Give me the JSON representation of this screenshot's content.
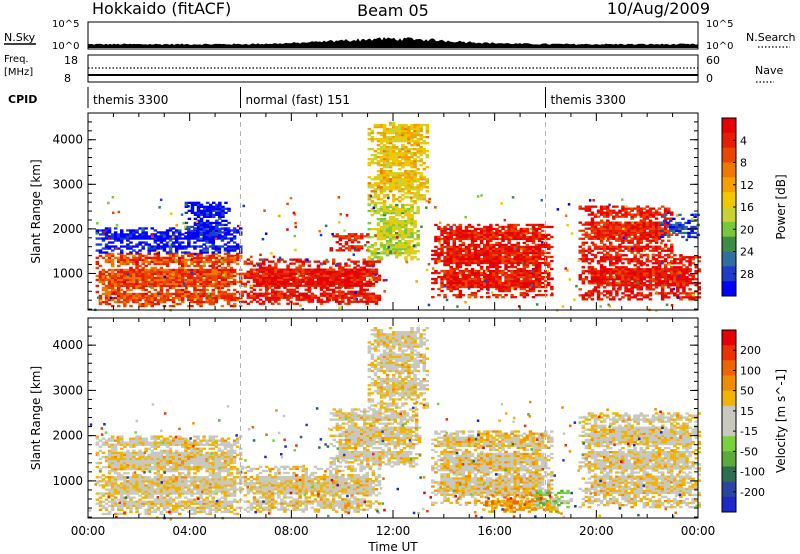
{
  "header": {
    "station": "Hokkaido (fitACF)",
    "beam": "Beam 05",
    "date": "10/Aug/2009"
  },
  "strip_labels": {
    "nsky": "N.Sky",
    "nsky_ticks": [
      "10^5",
      "10^0"
    ],
    "nsearch": "N.Search",
    "nsearch_ticks": [
      "10^5",
      "10^0"
    ],
    "freq": "Freq.",
    "freq_unit": "[MHz]",
    "freq_ticks": [
      "18",
      "8"
    ],
    "nave": "Nave",
    "nave_ticks": [
      "60",
      "0"
    ],
    "cpid": "CPID",
    "cpid_modes": [
      {
        "label": "themis 3300",
        "start_hour": 0,
        "end_hour": 6
      },
      {
        "label": "normal (fast) 151",
        "start_hour": 6,
        "end_hour": 18
      },
      {
        "label": "themis 3300",
        "start_hour": 18,
        "end_hour": 24
      }
    ]
  },
  "chart_data": [
    {
      "type": "heatmap",
      "name": "power",
      "ylabel": "Slant Range [km]",
      "xlabel": "Time UT",
      "xlim": [
        0,
        24
      ],
      "ylim": [
        180,
        4600
      ],
      "y_ticks": [
        1000,
        2000,
        3000,
        4000
      ],
      "x_ticks": [
        "00:00",
        "04:00",
        "08:00",
        "12:00",
        "16:00",
        "20:00",
        "00:00"
      ],
      "colorbar": {
        "label": "Power [dB]",
        "ticks": [
          "4",
          "8",
          "12",
          "16",
          "20",
          "24",
          "28"
        ],
        "colors": [
          "#0000ff",
          "#1e3cc8",
          "#2e6e9e",
          "#3c8c46",
          "#78c83c",
          "#c8d232",
          "#f0c800",
          "#f5a000",
          "#f07800",
          "#eb4600",
          "#e61e00",
          "#e60000"
        ]
      },
      "regions": [
        {
          "t0": 0.3,
          "t1": 6.0,
          "r0": 250,
          "r1": 1450,
          "level": 0.8
        },
        {
          "t0": 0.3,
          "t1": 6.0,
          "r0": 1450,
          "r1": 2000,
          "level": 0.05
        },
        {
          "t0": 3.8,
          "t1": 5.6,
          "r0": 1800,
          "r1": 2600,
          "level": 0.05
        },
        {
          "t0": 6.0,
          "t1": 11.5,
          "r0": 300,
          "r1": 1300,
          "level": 0.92
        },
        {
          "t0": 9.5,
          "t1": 11.0,
          "r0": 1500,
          "r1": 1900,
          "level": 0.88
        },
        {
          "t0": 11.0,
          "t1": 13.0,
          "r0": 1300,
          "r1": 2600,
          "level": 0.45
        },
        {
          "t0": 11.0,
          "t1": 13.3,
          "r0": 2600,
          "r1": 4400,
          "level": 0.55
        },
        {
          "t0": 13.5,
          "t1": 18.2,
          "r0": 450,
          "r1": 2100,
          "level": 0.9
        },
        {
          "t0": 19.3,
          "t1": 24.0,
          "r0": 400,
          "r1": 1400,
          "level": 0.92
        },
        {
          "t0": 19.3,
          "t1": 23.0,
          "r0": 1400,
          "r1": 2500,
          "level": 0.88
        },
        {
          "t0": 22.5,
          "t1": 24.0,
          "r0": 1800,
          "r1": 2300,
          "level": 0.15
        }
      ]
    },
    {
      "type": "heatmap",
      "name": "velocity",
      "ylabel": "Slant Range [km]",
      "xlabel": "Time UT",
      "xlim": [
        0,
        24
      ],
      "ylim": [
        180,
        4600
      ],
      "y_ticks": [
        1000,
        2000,
        3000,
        4000
      ],
      "x_ticks": [
        "00:00",
        "04:00",
        "08:00",
        "12:00",
        "16:00",
        "20:00",
        "00:00"
      ],
      "colorbar": {
        "label": "Velocity [m s^-1]",
        "ticks": [
          "200",
          "100",
          "50",
          "15",
          "-15",
          "-50",
          "-100",
          "-200"
        ],
        "colors": [
          "#1e28c8",
          "#2846a0",
          "#2e6e50",
          "#5aaa3c",
          "#78d23c",
          "#c8c8c0",
          "#c8c8c0",
          "#f0b400",
          "#f08c00",
          "#f06400",
          "#ec3200",
          "#e60000"
        ]
      },
      "regions": [
        {
          "t0": 0.3,
          "t1": 6.0,
          "r0": 250,
          "r1": 2000,
          "level": 0.55
        },
        {
          "t0": 6.0,
          "t1": 11.5,
          "r0": 300,
          "r1": 1300,
          "level": 0.56
        },
        {
          "t0": 9.5,
          "t1": 13.0,
          "r0": 1300,
          "r1": 2600,
          "level": 0.55
        },
        {
          "t0": 11.0,
          "t1": 13.3,
          "r0": 2600,
          "r1": 4400,
          "level": 0.55
        },
        {
          "t0": 13.5,
          "t1": 18.2,
          "r0": 450,
          "r1": 2100,
          "level": 0.57
        },
        {
          "t0": 15.5,
          "t1": 18.5,
          "r0": 300,
          "r1": 700,
          "level": 0.7
        },
        {
          "t0": 17.5,
          "t1": 19.0,
          "r0": 400,
          "r1": 800,
          "level": 0.38
        },
        {
          "t0": 19.3,
          "t1": 24.0,
          "r0": 400,
          "r1": 2500,
          "level": 0.55
        }
      ]
    }
  ],
  "colors": {
    "axis": "#000000",
    "dashed": "#b4b4b4",
    "strip_fill": "#000000"
  }
}
